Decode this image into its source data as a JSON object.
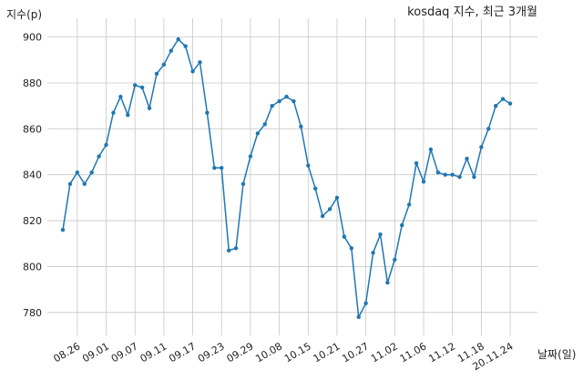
{
  "chart_data": {
    "type": "line",
    "title": "kosdaq 지수, 최근 3개월",
    "xlabel": "날짜(일)",
    "ylabel": "지수(p)",
    "ylim": [
      770,
      905
    ],
    "yticks": [
      780,
      800,
      820,
      840,
      860,
      880,
      900
    ],
    "grid": true,
    "xticks": [
      "08.26",
      "09.01",
      "09.07",
      "09.11",
      "09.17",
      "09.23",
      "09.29",
      "10.08",
      "10.15",
      "10.21",
      "10.27",
      "11.02",
      "11.06",
      "11.12",
      "11.18",
      "20.11.24"
    ],
    "x": [
      "08.24",
      "08.25",
      "08.26",
      "08.27",
      "08.28",
      "08.31",
      "09.01",
      "09.02",
      "09.03",
      "09.04",
      "09.07",
      "09.08",
      "09.09",
      "09.10",
      "09.11",
      "09.14",
      "09.15",
      "09.16",
      "09.17",
      "09.18",
      "09.21",
      "09.22",
      "09.23",
      "09.24",
      "09.25",
      "09.28",
      "09.29",
      "10.05",
      "10.06",
      "10.07",
      "10.08",
      "10.12",
      "10.13",
      "10.14",
      "10.15",
      "10.16",
      "10.19",
      "10.20",
      "10.21",
      "10.22",
      "10.23",
      "10.26",
      "10.27",
      "10.28",
      "10.29",
      "10.30",
      "11.02",
      "11.03",
      "11.04",
      "11.05",
      "11.06",
      "11.09",
      "11.10",
      "11.11",
      "11.12",
      "11.13",
      "11.16",
      "11.17",
      "11.18",
      "11.19",
      "11.20",
      "11.23",
      "11.24"
    ],
    "series": [
      {
        "color": "#1f77b4",
        "values": [
          816,
          836,
          841,
          836,
          841,
          848,
          853,
          867,
          874,
          866,
          879,
          878,
          869,
          884,
          888,
          894,
          899,
          896,
          885,
          889,
          867,
          843,
          843,
          807,
          808,
          836,
          848,
          858,
          862,
          870,
          872,
          874,
          872,
          861,
          844,
          834,
          822,
          825,
          830,
          813,
          808,
          778,
          784,
          806,
          814,
          793,
          803,
          818,
          827,
          845,
          837,
          851,
          841,
          840,
          840,
          839,
          847,
          839,
          852,
          860,
          870,
          873,
          871
        ]
      }
    ]
  }
}
